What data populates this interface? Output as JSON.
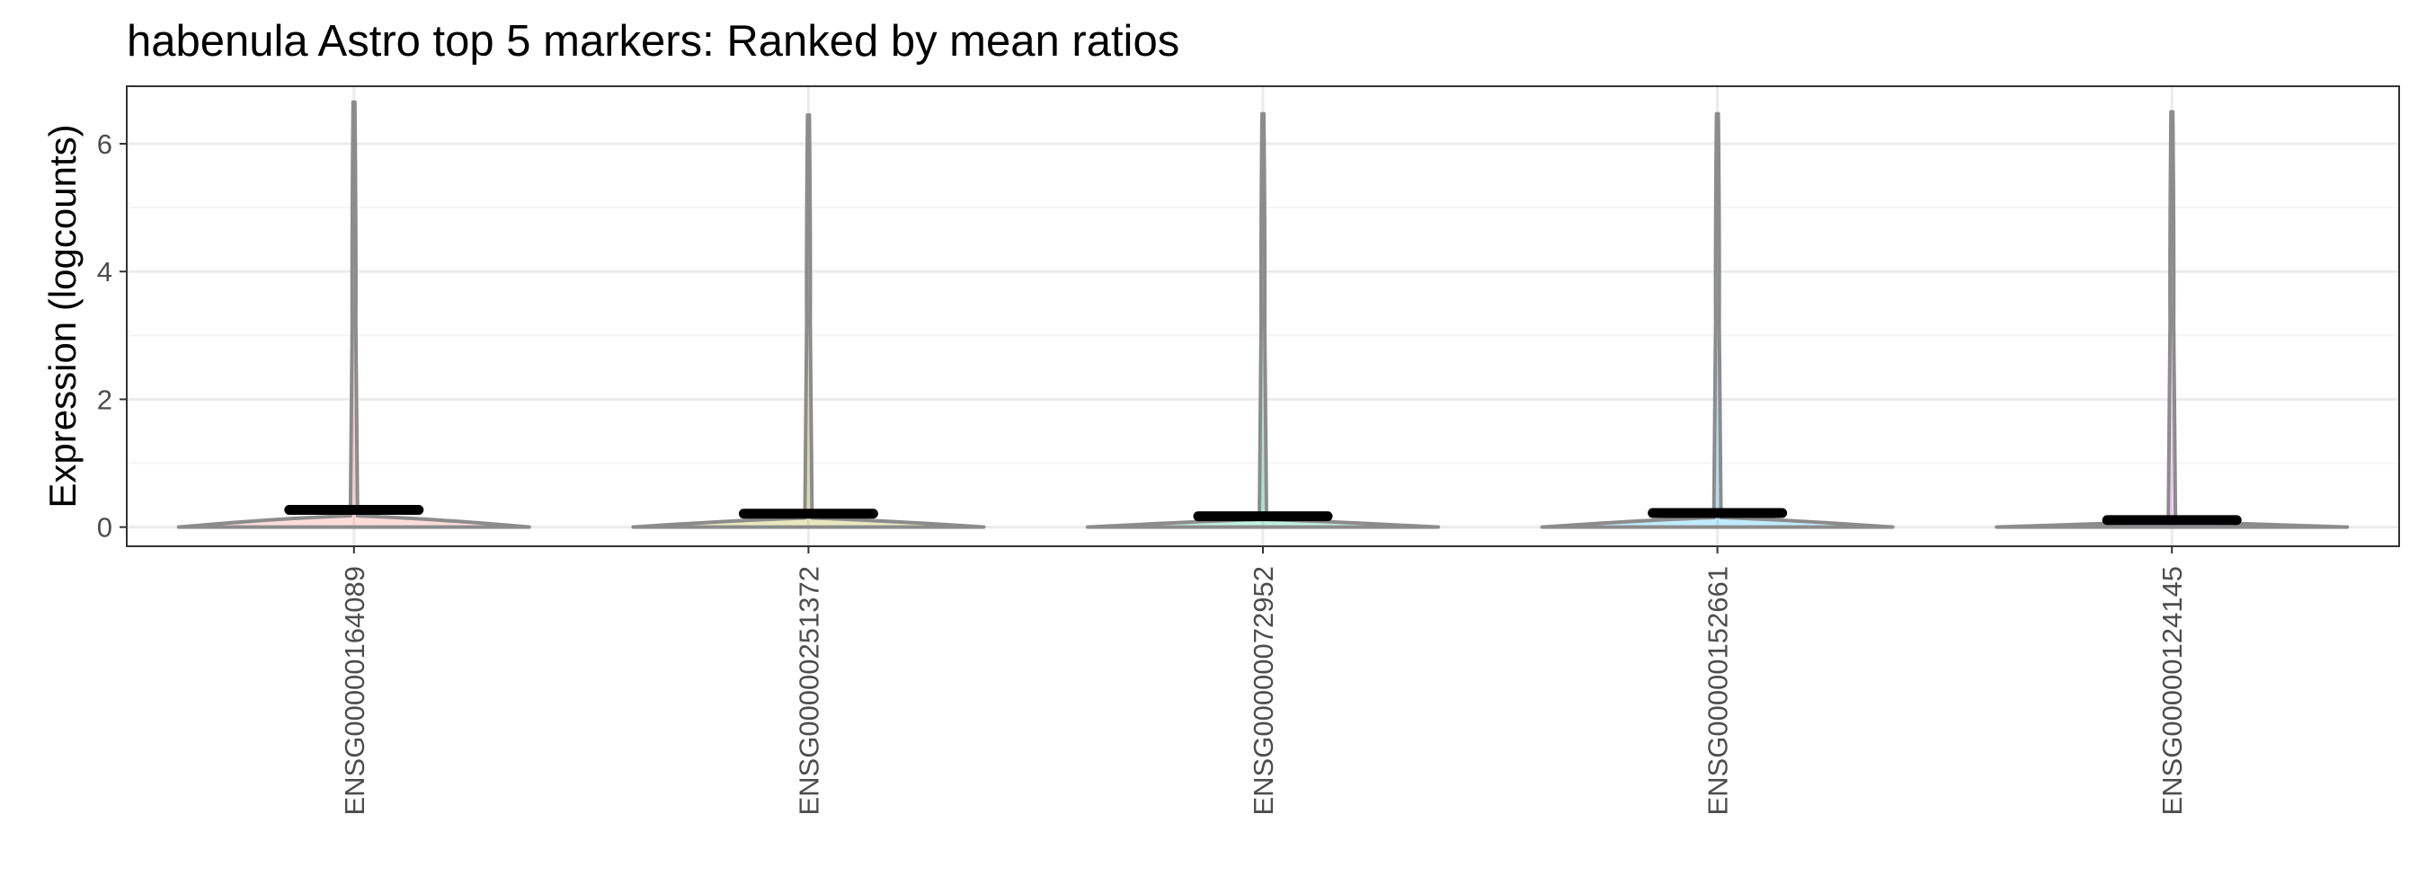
{
  "chart_data": {
    "type": "violin",
    "title": "habenula Astro top 5 markers: Ranked by mean ratios",
    "xlabel": "",
    "ylabel": "Expression (logcounts)",
    "ylim": [
      -0.3,
      6.9
    ],
    "y_ticks": [
      0,
      2,
      4,
      6
    ],
    "y_tick_labels": [
      "0",
      "2",
      "4",
      "6"
    ],
    "grid": true,
    "legend": "none",
    "categories": [
      "ENSG00000164089",
      "ENSG00000251372",
      "ENSG00000072952",
      "ENSG00000152661",
      "ENSG00000124145"
    ],
    "series": [
      {
        "category": "ENSG00000164089",
        "max": 6.65,
        "mean": 0.27,
        "fill_color": "#f8766d"
      },
      {
        "category": "ENSG00000251372",
        "max": 6.45,
        "mean": 0.21,
        "fill_color": "#a3a500"
      },
      {
        "category": "ENSG00000072952",
        "max": 6.47,
        "mean": 0.17,
        "fill_color": "#00bf7d"
      },
      {
        "category": "ENSG00000152661",
        "max": 6.47,
        "mean": 0.22,
        "fill_color": "#00b0f6"
      },
      {
        "category": "ENSG00000124145",
        "max": 6.5,
        "mean": 0.11,
        "fill_color": "#e76bf3"
      }
    ],
    "colors": {
      "violin_outline": "#8c8c8c",
      "mean_bar": "#000000",
      "grid_major": "#ebebeb",
      "grid_minor": "#f5f5f5",
      "panel_border": "#333333"
    }
  }
}
